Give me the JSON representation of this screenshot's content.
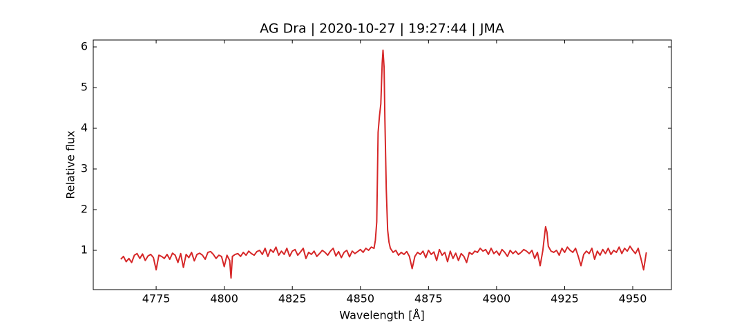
{
  "chart_data": {
    "type": "line",
    "title": "AG Dra | 2020-10-27 | 19:27:44 | JMA",
    "xlabel": "Wavelength [Å]",
    "ylabel": "Relative flux",
    "color": "#d62728",
    "xlim": [
      4751.9,
      4964.2
    ],
    "ylim": [
      0.034,
      6.17
    ],
    "xticks": [
      4775,
      4800,
      4825,
      4850,
      4875,
      4900,
      4925,
      4950
    ],
    "yticks": [
      1,
      2,
      3,
      4,
      5,
      6
    ],
    "x": [
      4762,
      4763,
      4764,
      4765,
      4766,
      4767,
      4768,
      4769,
      4770,
      4771,
      4772,
      4773,
      4774,
      4775,
      4776,
      4777,
      4778,
      4779,
      4780,
      4781,
      4782,
      4783,
      4784,
      4785,
      4786,
      4787,
      4788,
      4789,
      4790,
      4791,
      4792,
      4793,
      4794,
      4795,
      4796,
      4797,
      4798,
      4799,
      4800,
      4801,
      4802,
      4802.5,
      4803,
      4804,
      4805,
      4806,
      4807,
      4808,
      4809,
      4810,
      4811,
      4812,
      4813,
      4814,
      4815,
      4816,
      4817,
      4818,
      4819,
      4820,
      4821,
      4822,
      4823,
      4824,
      4825,
      4826,
      4827,
      4828,
      4829,
      4830,
      4831,
      4832,
      4833,
      4834,
      4835,
      4836,
      4837,
      4838,
      4839,
      4840,
      4841,
      4842,
      4843,
      4844,
      4845,
      4846,
      4847,
      4848,
      4849,
      4850,
      4851,
      4852,
      4853,
      4854,
      4855,
      4855.5,
      4856,
      4856.5,
      4857,
      4857.5,
      4858,
      4858.3,
      4858.7,
      4859,
      4859.5,
      4860,
      4860.5,
      4861,
      4862,
      4863,
      4864,
      4865,
      4866,
      4867,
      4868,
      4869,
      4870,
      4871,
      4872,
      4873,
      4874,
      4875,
      4876,
      4877,
      4878,
      4879,
      4880,
      4881,
      4882,
      4883,
      4884,
      4885,
      4886,
      4887,
      4888,
      4889,
      4890,
      4891,
      4892,
      4893,
      4894,
      4895,
      4896,
      4897,
      4898,
      4899,
      4900,
      4901,
      4902,
      4903,
      4904,
      4905,
      4906,
      4907,
      4908,
      4909,
      4910,
      4911,
      4912,
      4913,
      4914,
      4915,
      4916,
      4917,
      4917.5,
      4918,
      4918.5,
      4919,
      4920,
      4921,
      4922,
      4923,
      4924,
      4925,
      4926,
      4927,
      4928,
      4929,
      4930,
      4931,
      4932,
      4933,
      4934,
      4935,
      4936,
      4937,
      4938,
      4939,
      4940,
      4941,
      4942,
      4943,
      4944,
      4945,
      4946,
      4947,
      4948,
      4949,
      4950,
      4951,
      4952,
      4953,
      4954,
      4955
    ],
    "values": [
      0.78,
      0.85,
      0.72,
      0.8,
      0.7,
      0.88,
      0.92,
      0.8,
      0.91,
      0.75,
      0.86,
      0.9,
      0.82,
      0.52,
      0.88,
      0.85,
      0.8,
      0.9,
      0.78,
      0.93,
      0.88,
      0.7,
      0.92,
      0.58,
      0.9,
      0.82,
      0.95,
      0.74,
      0.9,
      0.93,
      0.88,
      0.78,
      0.95,
      0.97,
      0.9,
      0.8,
      0.88,
      0.85,
      0.6,
      0.88,
      0.75,
      0.32,
      0.85,
      0.9,
      0.92,
      0.85,
      0.95,
      0.88,
      0.98,
      0.92,
      0.88,
      0.97,
      1.0,
      0.9,
      1.05,
      0.85,
      1.02,
      0.95,
      1.08,
      0.88,
      0.98,
      0.9,
      1.05,
      0.85,
      0.98,
      1.02,
      0.88,
      0.96,
      1.05,
      0.8,
      0.95,
      0.9,
      0.98,
      0.85,
      0.92,
      1.0,
      0.95,
      0.88,
      0.98,
      1.05,
      0.86,
      0.97,
      0.82,
      0.95,
      1.0,
      0.84,
      0.98,
      0.92,
      0.97,
      1.02,
      0.95,
      1.05,
      1.0,
      1.08,
      1.05,
      1.25,
      1.7,
      3.9,
      4.3,
      4.6,
      5.6,
      5.92,
      5.5,
      4.2,
      2.5,
      1.5,
      1.2,
      1.05,
      0.95,
      1.0,
      0.88,
      0.95,
      0.9,
      0.97,
      0.85,
      0.55,
      0.85,
      0.95,
      0.9,
      0.98,
      0.82,
      1.0,
      0.9,
      0.96,
      0.75,
      1.02,
      0.88,
      0.95,
      0.72,
      0.98,
      0.8,
      0.93,
      0.75,
      0.92,
      0.85,
      0.7,
      0.95,
      0.9,
      0.98,
      0.95,
      1.05,
      0.98,
      1.02,
      0.9,
      1.05,
      0.92,
      0.98,
      0.88,
      1.02,
      0.95,
      0.85,
      1.0,
      0.92,
      0.98,
      0.9,
      0.95,
      1.02,
      0.98,
      0.92,
      1.0,
      0.8,
      0.95,
      0.62,
      1.0,
      1.3,
      1.58,
      1.45,
      1.1,
      0.98,
      0.95,
      1.0,
      0.88,
      1.05,
      0.95,
      1.08,
      1.0,
      0.95,
      1.05,
      0.85,
      0.62,
      0.9,
      0.98,
      0.92,
      1.05,
      0.78,
      0.98,
      0.88,
      1.02,
      0.92,
      1.05,
      0.9,
      1.0,
      0.95,
      1.08,
      0.92,
      1.05,
      0.98,
      1.1,
      1.0,
      0.92,
      1.05,
      0.8,
      0.52,
      0.95
    ]
  }
}
